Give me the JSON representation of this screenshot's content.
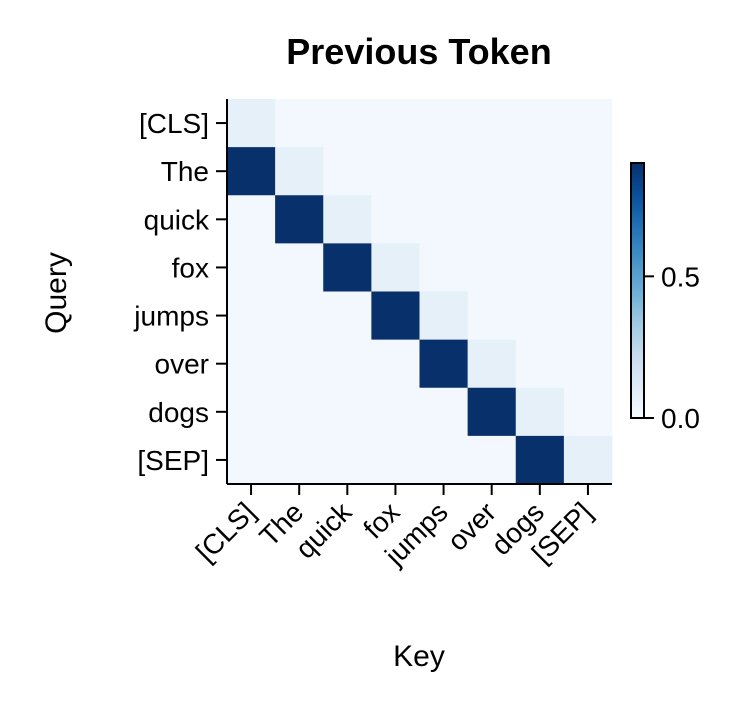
{
  "chart_data": {
    "type": "heatmap",
    "title": "Previous Token",
    "xlabel": "Key",
    "ylabel": "Query",
    "x_categories": [
      "[CLS]",
      "The",
      "quick",
      "fox",
      "jumps",
      "over",
      "dogs",
      "[SEP]"
    ],
    "y_categories": [
      "[CLS]",
      "The",
      "quick",
      "fox",
      "jumps",
      "over",
      "dogs",
      "[SEP]"
    ],
    "values": [
      [
        0.08,
        0.02,
        0.02,
        0.02,
        0.02,
        0.02,
        0.02,
        0.02
      ],
      [
        0.9,
        0.08,
        0.02,
        0.02,
        0.02,
        0.02,
        0.02,
        0.02
      ],
      [
        0.02,
        0.9,
        0.08,
        0.02,
        0.02,
        0.02,
        0.02,
        0.02
      ],
      [
        0.02,
        0.02,
        0.9,
        0.08,
        0.02,
        0.02,
        0.02,
        0.02
      ],
      [
        0.02,
        0.02,
        0.02,
        0.9,
        0.08,
        0.02,
        0.02,
        0.02
      ],
      [
        0.02,
        0.02,
        0.02,
        0.02,
        0.9,
        0.08,
        0.02,
        0.02
      ],
      [
        0.02,
        0.02,
        0.02,
        0.02,
        0.02,
        0.9,
        0.08,
        0.02
      ],
      [
        0.02,
        0.02,
        0.02,
        0.02,
        0.02,
        0.02,
        0.9,
        0.08
      ]
    ],
    "colormap": "Blues",
    "colorbar": {
      "range": [
        0.0,
        0.9
      ],
      "ticks": [
        0.0,
        0.5
      ],
      "tick_labels": [
        "0.0",
        "0.5"
      ]
    },
    "grid": false
  }
}
